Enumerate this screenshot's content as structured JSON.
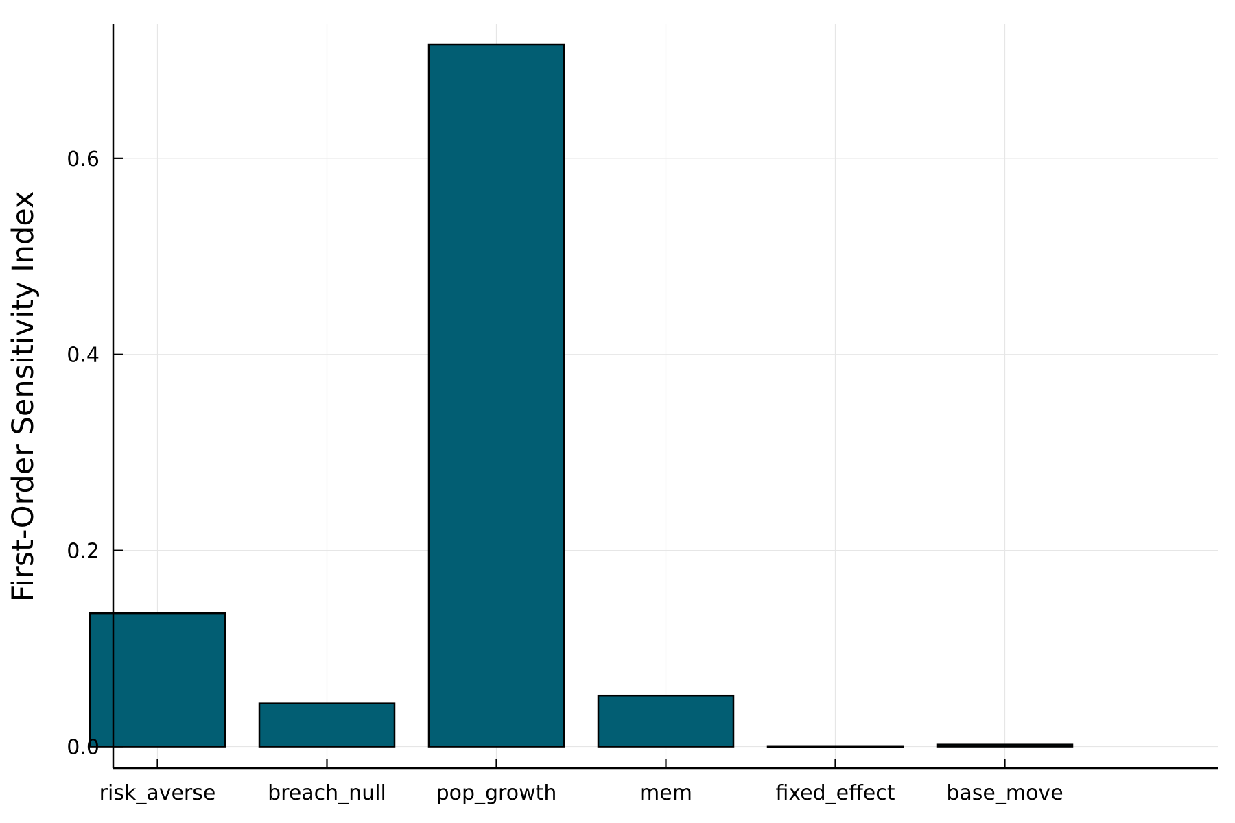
{
  "chart_data": {
    "type": "bar",
    "title": "",
    "xlabel": "",
    "ylabel": "First-Order Sensitivity Index",
    "categories": [
      "risk_averse",
      "breach_null",
      "pop_growth",
      "mem",
      "fixed_effect",
      "base_move"
    ],
    "values": [
      0.136,
      0.044,
      0.716,
      0.052,
      -0.001,
      0.002
    ],
    "ylim": [
      -0.022,
      0.737
    ],
    "yticks": [
      0.0,
      0.2,
      0.4,
      0.6
    ],
    "ytick_labels": [
      "0.0",
      "0.2",
      "0.4",
      "0.6"
    ],
    "grid": true,
    "legend": "none",
    "bar_color": "#025e73",
    "bar_edge_color": "#000000"
  }
}
